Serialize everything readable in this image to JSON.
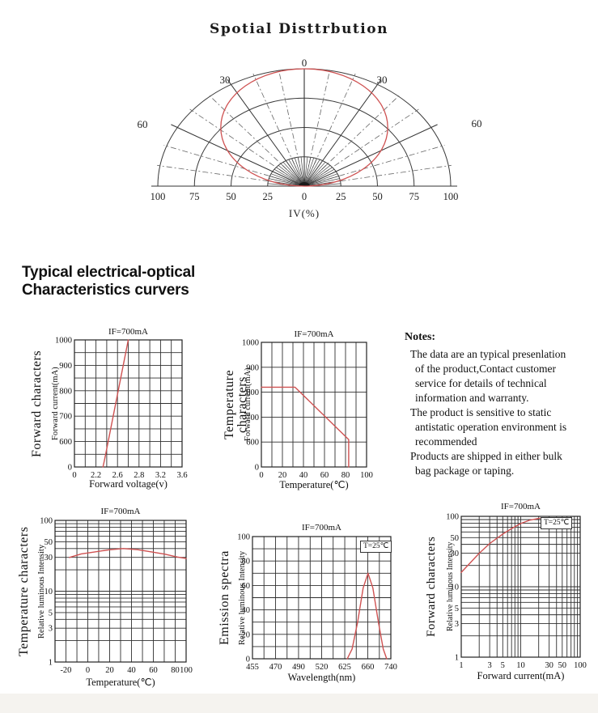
{
  "accent_red": "#cf5252",
  "grid_color": "#2f2f2f",
  "section": {
    "heading_line1": "Typical electrical-optical",
    "heading_line2": "Characteristics curvers"
  },
  "notes": {
    "title": "Notes:",
    "lines": [
      {
        "text": "The data are an typical presenlation",
        "start": true
      },
      {
        "text": "of the product,Contact customer",
        "start": false
      },
      {
        "text": "service for details of technical",
        "start": false
      },
      {
        "text": "information and warranty.",
        "start": false
      },
      {
        "text": "The product is sensitive to static",
        "start": true
      },
      {
        "text": "antistatic operation environment is",
        "start": false
      },
      {
        "text": "recommended",
        "start": false
      },
      {
        "text": "Products are shipped in either bulk",
        "start": true
      },
      {
        "text": "bag package or taping.",
        "start": false
      }
    ]
  },
  "chart_data": [
    {
      "type": "polar",
      "title": "Spotial Disttrbution",
      "radial_axis_label": "IV(%)",
      "angle_labels": [
        "0",
        "30",
        "30",
        "60",
        "60"
      ],
      "radial_ticks": [
        "100",
        "75",
        "50",
        "25",
        "0",
        "25",
        "50",
        "75",
        "100"
      ],
      "rings_pct": [
        25,
        50,
        75,
        100
      ],
      "angle_tick_step_deg": 10,
      "curve_ellipse_pct": {
        "a": 57,
        "b": 50
      },
      "points_angle_iv": [
        [
          -90,
          3
        ],
        [
          -80,
          18
        ],
        [
          -60,
          62
        ],
        [
          -45,
          80
        ],
        [
          -30,
          92
        ],
        [
          0,
          100
        ],
        [
          30,
          92
        ],
        [
          45,
          80
        ],
        [
          60,
          62
        ],
        [
          80,
          18
        ],
        [
          90,
          3
        ]
      ]
    },
    {
      "type": "line",
      "side_title": "Forward characters",
      "ylabel": "Forward current(mA)",
      "xlabel": "Forward voltage(v)",
      "condition": "IF=700mA",
      "x_scale": "custom",
      "y_scale": "custom",
      "x_tick_values": [
        "0",
        "2.2",
        "2.6",
        "2.8",
        "3.2",
        "3.6"
      ],
      "y_tick_values": [
        "1000",
        "900",
        "800",
        "700",
        "600",
        "0"
      ],
      "points": [
        [
          2.35,
          0
        ],
        [
          2.45,
          330
        ],
        [
          2.55,
          660
        ],
        [
          2.65,
          1000
        ]
      ],
      "render": {
        "xg": [
          0,
          0.1,
          0.2,
          0.3,
          0.4,
          0.5,
          0.6,
          0.7,
          0.8,
          0.9,
          1
        ],
        "yg": [
          0,
          0.1,
          0.2,
          0.3,
          0.4,
          0.5,
          0.6,
          0.7,
          0.8,
          0.9,
          1
        ],
        "xt": [
          {
            "t": "0",
            "f": 0
          },
          {
            "t": "2.2",
            "f": 0.2
          },
          {
            "t": "2.6",
            "f": 0.4
          },
          {
            "t": "2.8",
            "f": 0.6
          },
          {
            "t": "3.2",
            "f": 0.8
          },
          {
            "t": "3.6",
            "f": 1
          }
        ],
        "yt": [
          {
            "t": "1000",
            "f": 1
          },
          {
            "t": "900",
            "f": 0.8
          },
          {
            "t": "800",
            "f": 0.6
          },
          {
            "t": "700",
            "f": 0.4
          },
          {
            "t": "600",
            "f": 0.2
          },
          {
            "t": "0",
            "f": 0
          }
        ],
        "curve": [
          [
            0.265,
            0
          ],
          [
            0.278,
            0.05
          ],
          [
            0.29,
            0.1
          ],
          [
            0.5,
            1
          ]
        ]
      }
    },
    {
      "type": "line",
      "side_title": "Temperature characters",
      "ylabel": "Forward current(mA)",
      "xlabel": "Temperature(℃)",
      "condition": "IF=700mA",
      "x_scale": "linear",
      "y_scale": "custom",
      "x_range": [
        0,
        100
      ],
      "x_tick_values": [
        "0",
        "20",
        "40",
        "60",
        "80",
        "100"
      ],
      "y_tick_values": [
        "1000",
        "900",
        "800",
        "700",
        "600",
        "0"
      ],
      "points": [
        [
          0,
          820
        ],
        [
          30,
          820
        ],
        [
          83,
          620
        ],
        [
          83,
          0
        ]
      ],
      "render": {
        "xg": [
          0,
          0.1,
          0.2,
          0.3,
          0.4,
          0.5,
          0.6,
          0.7,
          0.8,
          0.9,
          1
        ],
        "yg": [
          0,
          0.2,
          0.4,
          0.6,
          0.8,
          1
        ],
        "xt": [
          {
            "t": "0",
            "f": 0
          },
          {
            "t": "20",
            "f": 0.2
          },
          {
            "t": "40",
            "f": 0.4
          },
          {
            "t": "60",
            "f": 0.6
          },
          {
            "t": "80",
            "f": 0.8
          },
          {
            "t": "100",
            "f": 1
          }
        ],
        "yt": [
          {
            "t": "1000",
            "f": 1
          },
          {
            "t": "900",
            "f": 0.8
          },
          {
            "t": "800",
            "f": 0.6
          },
          {
            "t": "700",
            "f": 0.4
          },
          {
            "t": "600",
            "f": 0.2
          },
          {
            "t": "0",
            "f": 0
          }
        ],
        "curve": [
          [
            0,
            0.64
          ],
          [
            0.32,
            0.64
          ],
          [
            0.83,
            0.22
          ],
          [
            0.83,
            0
          ]
        ]
      }
    },
    {
      "type": "line",
      "side_title": "Temperature characters",
      "ylabel": "Relative luminous Intensity",
      "xlabel": "Temperature(℃)",
      "condition": "IF=700mA",
      "x_scale": "linear",
      "y_scale": "log",
      "x_range": [
        -30,
        90
      ],
      "y_range": [
        1,
        100
      ],
      "x_tick_values": [
        "-20",
        "0",
        "20",
        "40",
        "60",
        "80",
        "100"
      ],
      "y_tick_values": [
        "100",
        "50",
        "30",
        "10",
        "5",
        "3",
        "1"
      ],
      "points": [
        [
          -20,
          30
        ],
        [
          0,
          36
        ],
        [
          30,
          40
        ],
        [
          60,
          36
        ],
        [
          90,
          31
        ],
        [
          100,
          29
        ]
      ],
      "render": {
        "xg": [
          0,
          0.083,
          0.167,
          0.25,
          0.333,
          0.417,
          0.5,
          0.583,
          0.667,
          0.75,
          0.833,
          0.917,
          1
        ],
        "yg": [
          0,
          0.151,
          0.239,
          0.301,
          0.349,
          0.389,
          0.423,
          0.451,
          0.477,
          0.5,
          0.651,
          0.739,
          0.801,
          0.849,
          0.889,
          0.923,
          0.951,
          0.977,
          1
        ],
        "xt": [
          {
            "t": "-20",
            "f": 0.083
          },
          {
            "t": "0",
            "f": 0.25
          },
          {
            "t": "20",
            "f": 0.417
          },
          {
            "t": "40",
            "f": 0.583
          },
          {
            "t": "60",
            "f": 0.75
          },
          {
            "t": "80",
            "f": 0.917
          },
          {
            "t": "100",
            "f": 1
          }
        ],
        "yt": [
          {
            "t": "100",
            "f": 1
          },
          {
            "t": "50",
            "f": 0.849
          },
          {
            "t": "30",
            "f": 0.739
          },
          {
            "t": "10",
            "f": 0.5
          },
          {
            "t": "5",
            "f": 0.349
          },
          {
            "t": "3",
            "f": 0.239
          },
          {
            "t": "1",
            "f": 0
          }
        ],
        "curve": [
          [
            0.11,
            0.738
          ],
          [
            0.2,
            0.763
          ],
          [
            0.3,
            0.777
          ],
          [
            0.41,
            0.792
          ],
          [
            0.52,
            0.801
          ],
          [
            0.63,
            0.793
          ],
          [
            0.74,
            0.777
          ],
          [
            0.84,
            0.761
          ],
          [
            0.93,
            0.742
          ],
          [
            1,
            0.731
          ]
        ]
      }
    },
    {
      "type": "line",
      "side_title": "Emission spectra",
      "ylabel": "Relative luminous Intensity",
      "xlabel": "Wavelength(nm)",
      "condition": "IF=700mA",
      "annotation": "T=25℃",
      "x_scale": "custom",
      "y_scale": "linear",
      "y_range": [
        0,
        100
      ],
      "x_tick_values": [
        "455",
        "470",
        "490",
        "520",
        "625",
        "660",
        "740"
      ],
      "y_tick_values": [
        "100",
        "80",
        "60",
        "40",
        "20",
        "0"
      ],
      "points": [
        [
          630,
          0
        ],
        [
          645,
          30
        ],
        [
          652,
          55
        ],
        [
          660,
          70
        ],
        [
          668,
          55
        ],
        [
          675,
          30
        ],
        [
          737,
          0
        ]
      ],
      "peak_wavelength_nm": 660,
      "peak_intensity": 70,
      "render": {
        "xg": [
          0,
          0.083,
          0.167,
          0.25,
          0.333,
          0.417,
          0.5,
          0.583,
          0.667,
          0.75,
          0.833,
          0.917,
          1
        ],
        "yg": [
          0,
          0.1,
          0.2,
          0.3,
          0.4,
          0.5,
          0.6,
          0.7,
          0.8,
          0.9,
          1
        ],
        "xt": [
          {
            "t": "455",
            "f": 0
          },
          {
            "t": "470",
            "f": 0.167
          },
          {
            "t": "490",
            "f": 0.333
          },
          {
            "t": "520",
            "f": 0.5
          },
          {
            "t": "625",
            "f": 0.667
          },
          {
            "t": "660",
            "f": 0.833
          },
          {
            "t": "740",
            "f": 1
          }
        ],
        "yt": [
          {
            "t": "100",
            "f": 1
          },
          {
            "t": "80",
            "f": 0.8
          },
          {
            "t": "60",
            "f": 0.6
          },
          {
            "t": "40",
            "f": 0.4
          },
          {
            "t": "20",
            "f": 0.2
          },
          {
            "t": "0",
            "f": 0
          }
        ],
        "curve": [
          [
            0.685,
            0
          ],
          [
            0.72,
            0.08
          ],
          [
            0.76,
            0.3
          ],
          [
            0.8,
            0.58
          ],
          [
            0.835,
            0.7
          ],
          [
            0.87,
            0.58
          ],
          [
            0.91,
            0.3
          ],
          [
            0.945,
            0.08
          ],
          [
            0.97,
            0
          ]
        ]
      }
    },
    {
      "type": "line",
      "side_title": "Forward characters",
      "ylabel": "Relative luminous Intensity",
      "xlabel": "Forward current(mA)",
      "condition": "IF=700mA",
      "annotation": "T=25℃",
      "x_scale": "log",
      "y_scale": "log",
      "x_range": [
        1,
        100
      ],
      "y_range": [
        1,
        100
      ],
      "x_tick_values": [
        "1",
        "3",
        "5",
        "10",
        "30",
        "50",
        "100"
      ],
      "y_tick_values": [
        "100",
        "50",
        "30",
        "10",
        "5",
        "3",
        "1"
      ],
      "points": [
        [
          1,
          16
        ],
        [
          2,
          30
        ],
        [
          3,
          41
        ],
        [
          5,
          56
        ],
        [
          10,
          79
        ],
        [
          20,
          94
        ]
      ],
      "render": {
        "xg": [
          0,
          0.151,
          0.239,
          0.301,
          0.349,
          0.389,
          0.423,
          0.451,
          0.477,
          0.5,
          0.651,
          0.739,
          0.801,
          0.849,
          0.889,
          0.923,
          0.951,
          0.977,
          1
        ],
        "yg": [
          0,
          0.151,
          0.239,
          0.301,
          0.349,
          0.389,
          0.423,
          0.451,
          0.477,
          0.5,
          0.651,
          0.739,
          0.801,
          0.849,
          0.889,
          0.923,
          0.951,
          0.977,
          1
        ],
        "xt": [
          {
            "t": "1",
            "f": 0
          },
          {
            "t": "3",
            "f": 0.239
          },
          {
            "t": "5",
            "f": 0.349
          },
          {
            "t": "10",
            "f": 0.5
          },
          {
            "t": "30",
            "f": 0.739
          },
          {
            "t": "50",
            "f": 0.849
          },
          {
            "t": "100",
            "f": 1
          }
        ],
        "yt": [
          {
            "t": "100",
            "f": 1
          },
          {
            "t": "50",
            "f": 0.849
          },
          {
            "t": "30",
            "f": 0.739
          },
          {
            "t": "10",
            "f": 0.5
          },
          {
            "t": "5",
            "f": 0.349
          },
          {
            "t": "3",
            "f": 0.239
          },
          {
            "t": "1",
            "f": 0
          }
        ],
        "curve": [
          [
            0,
            0.602
          ],
          [
            0.088,
            0.681
          ],
          [
            0.151,
            0.738
          ],
          [
            0.239,
            0.807
          ],
          [
            0.349,
            0.874
          ],
          [
            0.423,
            0.913
          ],
          [
            0.5,
            0.949
          ],
          [
            0.573,
            0.972
          ],
          [
            0.66,
            0.987
          ]
        ]
      }
    }
  ]
}
